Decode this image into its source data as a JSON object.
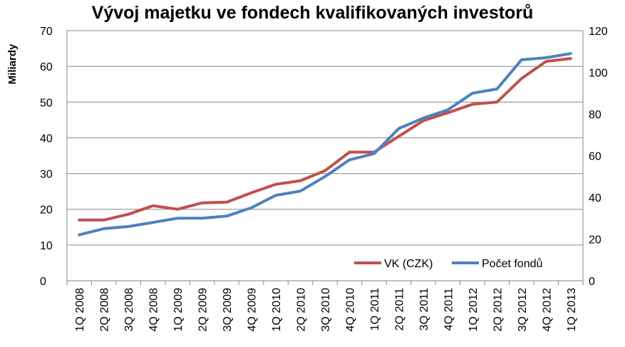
{
  "chart_data": {
    "type": "line",
    "title": "Vývoj majetku ve fondech kvalifikovaných investorů",
    "ylabel": "Miliardy",
    "y2label": "",
    "ylim": [
      0,
      70
    ],
    "y2lim": [
      0,
      120
    ],
    "yticks": [
      "0",
      "10",
      "20",
      "30",
      "40",
      "50",
      "60",
      "70"
    ],
    "y2ticks": [
      "0",
      "20",
      "40",
      "60",
      "80",
      "100",
      "120"
    ],
    "grid": true,
    "legend_position": "bottom-right",
    "categories": [
      "1Q 2008",
      "2Q 2008",
      "3Q 2008",
      "4Q 2008",
      "1Q 2009",
      "2Q 2009",
      "3Q 2009",
      "4Q 2009",
      "1Q 2010",
      "2Q 2010",
      "3Q 2010",
      "4Q 2010",
      "1Q 2011",
      "2Q 2011",
      "3Q 2011",
      "4Q 2011",
      "1Q 2012",
      "2Q 2012",
      "3Q 2012",
      "4Q 2012",
      "1Q 2013"
    ],
    "series": [
      {
        "name": "VK (CZK)",
        "axis": "left",
        "color": "#c0504d",
        "values": [
          17.0,
          17.0,
          18.6,
          21.0,
          20.0,
          21.8,
          22.0,
          24.6,
          27.0,
          28.0,
          30.8,
          36.0,
          36.0,
          40.4,
          44.8,
          47.0,
          49.4,
          50.0,
          56.6,
          61.4,
          62.2
        ]
      },
      {
        "name": "Počet fondů",
        "axis": "right",
        "color": "#4f81bd",
        "values": [
          22,
          25,
          26,
          28,
          30,
          30,
          31,
          35,
          41,
          43,
          50,
          58,
          61,
          73,
          78,
          82,
          90,
          92,
          106,
          107,
          109
        ]
      }
    ]
  }
}
